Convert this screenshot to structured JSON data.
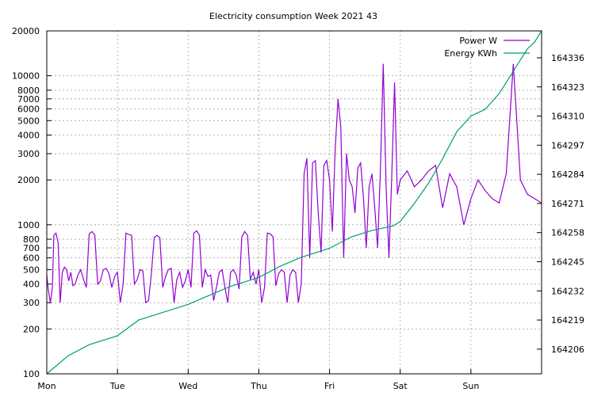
{
  "chart_data": {
    "type": "line",
    "title": "Electricity consumption Week 2021 43",
    "xlabel": "",
    "ylabel": "",
    "x_categories": [
      "Mon",
      "Tue",
      "Wed",
      "Thu",
      "Fri",
      "Sat",
      "Sun"
    ],
    "x_range_days": [
      0,
      7
    ],
    "y_left": {
      "scale": "log",
      "range": [
        100,
        20000
      ],
      "ticks": [
        100,
        200,
        300,
        400,
        500,
        600,
        700,
        800,
        1000,
        2000,
        3000,
        4000,
        5000,
        6000,
        7000,
        8000,
        10000,
        20000
      ]
    },
    "y_right": {
      "scale": "linear",
      "range": [
        164195,
        164348
      ],
      "ticks": [
        164206,
        164219,
        164232,
        164245,
        164258,
        164271,
        164284,
        164297,
        164310,
        164323,
        164336
      ]
    },
    "grid": true,
    "legend_position": "top-right",
    "series": [
      {
        "name": "Power W",
        "axis": "left",
        "color": "#9400d3",
        "x": [
          0.0,
          0.02,
          0.05,
          0.08,
          0.1,
          0.13,
          0.16,
          0.19,
          0.22,
          0.25,
          0.28,
          0.31,
          0.34,
          0.37,
          0.4,
          0.44,
          0.48,
          0.52,
          0.56,
          0.6,
          0.64,
          0.68,
          0.72,
          0.76,
          0.8,
          0.84,
          0.88,
          0.92,
          0.96,
          1.0,
          1.04,
          1.08,
          1.12,
          1.16,
          1.2,
          1.24,
          1.28,
          1.32,
          1.36,
          1.4,
          1.44,
          1.48,
          1.52,
          1.56,
          1.6,
          1.64,
          1.68,
          1.72,
          1.76,
          1.8,
          1.84,
          1.88,
          1.92,
          1.96,
          2.0,
          2.04,
          2.08,
          2.12,
          2.16,
          2.2,
          2.24,
          2.28,
          2.32,
          2.36,
          2.4,
          2.44,
          2.48,
          2.52,
          2.56,
          2.6,
          2.64,
          2.68,
          2.72,
          2.76,
          2.8,
          2.84,
          2.88,
          2.92,
          2.96,
          3.0,
          3.04,
          3.08,
          3.12,
          3.16,
          3.2,
          3.24,
          3.28,
          3.32,
          3.36,
          3.4,
          3.44,
          3.48,
          3.52,
          3.56,
          3.6,
          3.64,
          3.68,
          3.72,
          3.76,
          3.8,
          3.84,
          3.88,
          3.92,
          3.96,
          4.0,
          4.04,
          4.08,
          4.12,
          4.16,
          4.2,
          4.24,
          4.28,
          4.32,
          4.36,
          4.4,
          4.44,
          4.48,
          4.52,
          4.56,
          4.6,
          4.64,
          4.68,
          4.72,
          4.76,
          4.8,
          4.84,
          4.88,
          4.92,
          4.96,
          5.0,
          5.1,
          5.2,
          5.3,
          5.4,
          5.5,
          5.6,
          5.7,
          5.8,
          5.9,
          6.0,
          6.1,
          6.2,
          6.3,
          6.4,
          6.5,
          6.6,
          6.7,
          6.8,
          6.9,
          7.0
        ],
        "values": [
          460,
          370,
          300,
          380,
          850,
          880,
          760,
          300,
          480,
          520,
          500,
          420,
          480,
          390,
          400,
          460,
          500,
          430,
          380,
          870,
          900,
          850,
          400,
          420,
          500,
          510,
          470,
          380,
          450,
          480,
          300,
          400,
          880,
          860,
          850,
          400,
          430,
          500,
          490,
          300,
          310,
          470,
          820,
          850,
          820,
          380,
          450,
          500,
          510,
          300,
          430,
          480,
          380,
          420,
          500,
          380,
          880,
          910,
          850,
          380,
          500,
          450,
          460,
          310,
          380,
          480,
          500,
          380,
          300,
          480,
          500,
          460,
          370,
          830,
          900,
          850,
          430,
          480,
          400,
          500,
          300,
          380,
          880,
          870,
          830,
          390,
          470,
          500,
          480,
          300,
          460,
          500,
          480,
          300,
          400,
          2200,
          2800,
          600,
          2600,
          2700,
          1200,
          650,
          2500,
          2700,
          2000,
          900,
          3200,
          7000,
          4500,
          600,
          3000,
          2000,
          1800,
          1200,
          2400,
          2600,
          1500,
          700,
          1800,
          2200,
          1300,
          700,
          2400,
          12000,
          1800,
          600,
          2100,
          9000,
          1600,
          2000,
          2300,
          1800,
          2000,
          2300,
          2500,
          1300,
          2200,
          1800,
          1000,
          1500,
          2000,
          1700,
          1500,
          1400,
          2200,
          12000,
          2000,
          1600,
          1500,
          1400
        ]
      },
      {
        "name": "Energy KWh",
        "axis": "right",
        "color": "#009e73",
        "x": [
          0.0,
          0.3,
          0.6,
          1.0,
          1.3,
          1.7,
          2.0,
          2.3,
          2.6,
          3.0,
          3.3,
          3.6,
          4.0,
          4.3,
          4.6,
          4.9,
          5.0,
          5.2,
          5.4,
          5.6,
          5.8,
          6.0,
          6.2,
          6.4,
          6.6,
          6.8,
          6.9,
          7.0
        ],
        "values": [
          164195,
          164203,
          164208,
          164212,
          164219,
          164223,
          164226,
          164230,
          164234,
          164238,
          164243,
          164247,
          164251,
          164256,
          164259,
          164261,
          164263,
          164271,
          164280,
          164291,
          164303,
          164310,
          164313,
          164320,
          164330,
          164340,
          164343,
          164348
        ]
      }
    ]
  }
}
